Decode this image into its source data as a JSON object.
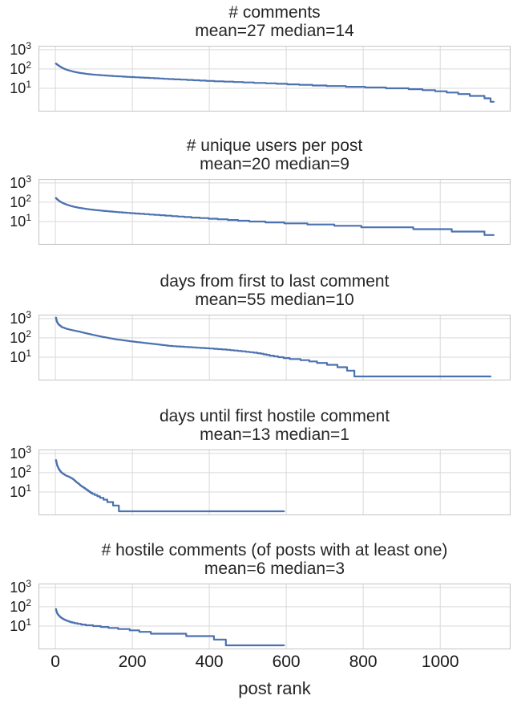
{
  "figure": {
    "xlabel": "post rank",
    "x_ticks": [
      0,
      200,
      400,
      600,
      800,
      1000
    ],
    "y_ticks": [
      {
        "base": "10",
        "exp": "3",
        "value": 1000
      },
      {
        "base": "10",
        "exp": "2",
        "value": 100
      },
      {
        "base": "10",
        "exp": "1",
        "value": 10
      }
    ],
    "y_gridlines": [
      1000,
      100,
      10
    ],
    "xlim": [
      -44,
      1183
    ],
    "ylim": [
      0.62,
      1600
    ],
    "yscale": "log",
    "line_color": "#4c72b0",
    "grid_color": "#d9d9d9",
    "border_color": "#c8c8c8",
    "text_color": "#262626",
    "background_color": "#ffffff"
  },
  "chart_data": [
    {
      "type": "line",
      "yscale": "log",
      "title": "# comments",
      "subtitle": "mean=27 median=14",
      "mean": 27,
      "median": 14,
      "x_end": 1139,
      "points": [
        [
          1,
          190
        ],
        [
          3,
          178
        ],
        [
          6,
          160
        ],
        [
          10,
          142
        ],
        [
          15,
          122
        ],
        [
          22,
          103
        ],
        [
          30,
          90
        ],
        [
          45,
          74
        ],
        [
          60,
          64
        ],
        [
          80,
          56
        ],
        [
          100,
          51
        ],
        [
          130,
          46
        ],
        [
          160,
          42
        ],
        [
          200,
          38
        ],
        [
          250,
          34
        ],
        [
          300,
          30
        ],
        [
          350,
          27
        ],
        [
          400,
          24
        ],
        [
          450,
          22
        ],
        [
          500,
          20
        ],
        [
          550,
          18.4
        ],
        [
          600,
          16.6
        ],
        [
          650,
          15
        ],
        [
          700,
          13.6
        ],
        [
          750,
          12.6
        ],
        [
          800,
          11.6
        ],
        [
          850,
          10.6
        ],
        [
          900,
          10
        ],
        [
          950,
          8.6
        ],
        [
          990,
          7.4
        ],
        [
          1020,
          6.4
        ],
        [
          1050,
          5.4
        ],
        [
          1080,
          4.4
        ],
        [
          1105,
          3.6
        ],
        [
          1125,
          3.4
        ],
        [
          1130,
          2.6
        ],
        [
          1136,
          1.6
        ],
        [
          1139,
          1.5
        ]
      ]
    },
    {
      "type": "line",
      "yscale": "log",
      "title": "# unique users per post",
      "subtitle": "mean=20 median=9",
      "mean": 20,
      "median": 9,
      "x_end": 1139,
      "points": [
        [
          1,
          165
        ],
        [
          3,
          150
        ],
        [
          6,
          132
        ],
        [
          10,
          115
        ],
        [
          15,
          99
        ],
        [
          22,
          85
        ],
        [
          30,
          74
        ],
        [
          45,
          60
        ],
        [
          60,
          52
        ],
        [
          80,
          45
        ],
        [
          100,
          40
        ],
        [
          130,
          35
        ],
        [
          160,
          31
        ],
        [
          200,
          27
        ],
        [
          250,
          23
        ],
        [
          300,
          19.6
        ],
        [
          350,
          16.6
        ],
        [
          400,
          14.4
        ],
        [
          450,
          12.4
        ],
        [
          500,
          10.6
        ],
        [
          550,
          9.4
        ],
        [
          600,
          8.4
        ],
        [
          650,
          7.6
        ],
        [
          700,
          6.6
        ],
        [
          750,
          6.4
        ],
        [
          800,
          5.4
        ],
        [
          870,
          5.4
        ],
        [
          900,
          4.6
        ],
        [
          960,
          4.4
        ],
        [
          1000,
          3.6
        ],
        [
          1060,
          3.4
        ],
        [
          1100,
          2.6
        ],
        [
          1130,
          2.4
        ],
        [
          1136,
          1.6
        ],
        [
          1139,
          1.6
        ]
      ]
    },
    {
      "type": "line",
      "yscale": "log",
      "title": "days from first to last comment",
      "subtitle": "mean=55 median=10",
      "mean": 55,
      "median": 10,
      "x_end": 1131,
      "points": [
        [
          1,
          1100
        ],
        [
          2,
          900
        ],
        [
          3,
          750
        ],
        [
          6,
          560
        ],
        [
          10,
          460
        ],
        [
          17,
          360
        ],
        [
          28,
          300
        ],
        [
          40,
          260
        ],
        [
          60,
          215
        ],
        [
          87,
          160
        ],
        [
          120,
          115
        ],
        [
          156,
          85
        ],
        [
          208,
          62
        ],
        [
          250,
          50
        ],
        [
          300,
          38
        ],
        [
          350,
          33
        ],
        [
          406,
          28
        ],
        [
          450,
          24
        ],
        [
          500,
          19
        ],
        [
          530,
          16
        ],
        [
          552,
          13
        ],
        [
          580,
          10.4
        ],
        [
          606,
          8.6
        ],
        [
          640,
          7.4
        ],
        [
          672,
          6
        ],
        [
          696,
          4.6
        ],
        [
          715,
          4.4
        ],
        [
          735,
          3.4
        ],
        [
          760,
          2.4
        ],
        [
          779,
          1.4
        ],
        [
          785,
          1
        ],
        [
          1131,
          1
        ]
      ]
    },
    {
      "type": "line",
      "yscale": "log",
      "title": "days until first hostile comment",
      "subtitle": "mean=13 median=1",
      "mean": 13,
      "median": 1,
      "x_end": 594,
      "points": [
        [
          1,
          450
        ],
        [
          2,
          370
        ],
        [
          4,
          250
        ],
        [
          7,
          180
        ],
        [
          10,
          140
        ],
        [
          15,
          105
        ],
        [
          20,
          88
        ],
        [
          28,
          70
        ],
        [
          35,
          62
        ],
        [
          45,
          48
        ],
        [
          55,
          32
        ],
        [
          65,
          22
        ],
        [
          75,
          16
        ],
        [
          82,
          13
        ],
        [
          90,
          10
        ],
        [
          98,
          8
        ],
        [
          106,
          7
        ],
        [
          112,
          6
        ],
        [
          120,
          5
        ],
        [
          130,
          4
        ],
        [
          140,
          3
        ],
        [
          152,
          2.4
        ],
        [
          162,
          1.6
        ],
        [
          172,
          1.2
        ],
        [
          180,
          1
        ],
        [
          594,
          1
        ]
      ]
    },
    {
      "type": "line",
      "yscale": "log",
      "title": "# hostile comments (of posts with at least one)",
      "subtitle": "mean=6 median=3",
      "mean": 6,
      "median": 3,
      "x_end": 594,
      "points": [
        [
          1,
          75
        ],
        [
          2,
          62
        ],
        [
          4,
          48
        ],
        [
          7,
          38
        ],
        [
          10,
          33
        ],
        [
          15,
          27
        ],
        [
          20,
          23
        ],
        [
          28,
          19.5
        ],
        [
          38,
          16.5
        ],
        [
          50,
          14.4
        ],
        [
          65,
          12.6
        ],
        [
          80,
          11.4
        ],
        [
          100,
          10.4
        ],
        [
          120,
          9.4
        ],
        [
          140,
          8.4
        ],
        [
          165,
          7.4
        ],
        [
          190,
          6.6
        ],
        [
          215,
          5.6
        ],
        [
          245,
          4.6
        ],
        [
          250,
          4.4
        ],
        [
          335,
          4.4
        ],
        [
          340,
          3.4
        ],
        [
          405,
          3.4
        ],
        [
          412,
          2.4
        ],
        [
          438,
          2.4
        ],
        [
          443,
          1.4
        ],
        [
          594,
          1.4
        ]
      ]
    }
  ]
}
